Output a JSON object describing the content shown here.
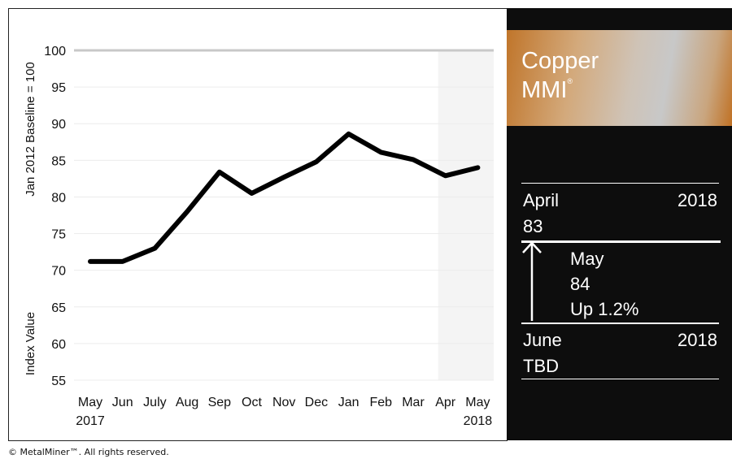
{
  "chart_data": {
    "type": "line",
    "ylabel_top": "Jan 2012 Baseline = 100",
    "ylabel_bottom": "Index Value",
    "ylim": [
      55,
      100
    ],
    "yticks": [
      100,
      95,
      90,
      85,
      80,
      75,
      70,
      65,
      60,
      55
    ],
    "categories": [
      "May",
      "Jun",
      "July",
      "Aug",
      "Sep",
      "Oct",
      "Nov",
      "Dec",
      "Jan",
      "Feb",
      "Mar",
      "Apr",
      "May"
    ],
    "year_labels": {
      "first": "2017",
      "last": "2018"
    },
    "values": [
      71.2,
      71.2,
      73,
      78,
      83.4,
      80.5,
      82.7,
      84.8,
      88.6,
      86.1,
      85.1,
      82.9,
      84
    ],
    "highlight_categories": [
      "Apr",
      "May"
    ],
    "grid": true
  },
  "panel": {
    "title_line1": "Copper",
    "title_line2": "MMI",
    "registered": "®",
    "current_month": "April",
    "current_year": "2018",
    "current_value": "83",
    "next_month": "May",
    "next_value": "84",
    "change": "Up 1.2%",
    "future_month": "June",
    "future_year": "2018",
    "future_value": "TBD",
    "colors": {
      "copper": "#c0752a",
      "dark": "#0d0d0d"
    }
  },
  "footer": "© MetalMiner™. All rights reserved."
}
